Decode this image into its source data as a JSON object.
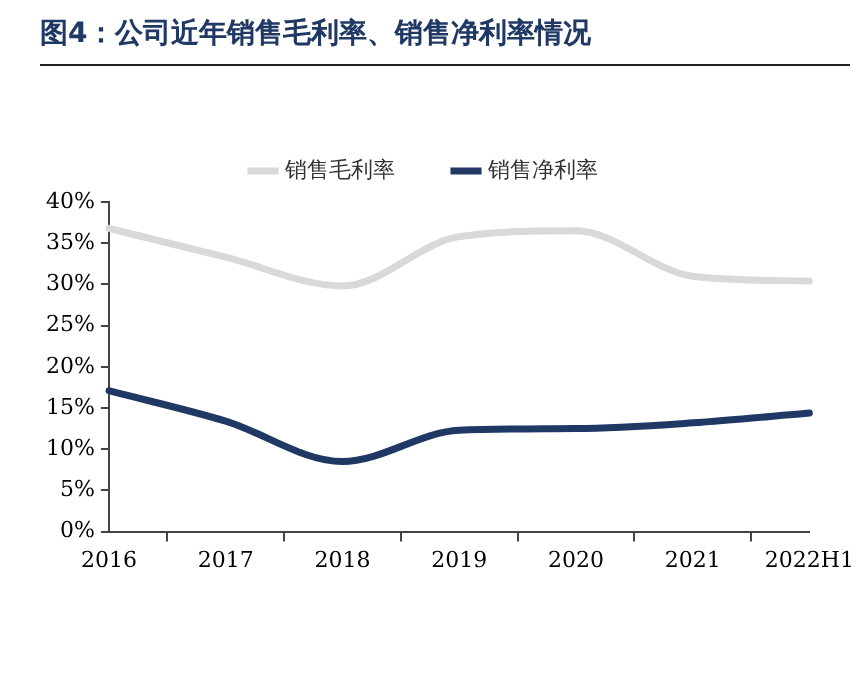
{
  "chart_data": {
    "type": "line",
    "title": "图4：公司近年销售毛利率、销售净利率情况",
    "categories": [
      "2016",
      "2017",
      "2018",
      "2019",
      "2020",
      "2021",
      "2022H1"
    ],
    "series": [
      {
        "name": "销售毛利率",
        "color": "#d9d9d9",
        "values": [
          36.8,
          33.3,
          29.8,
          35.8,
          36.5,
          31.0,
          30.4
        ]
      },
      {
        "name": "销售净利率",
        "color": "#1f3864",
        "values": [
          17.1,
          13.4,
          8.5,
          12.3,
          12.5,
          13.2,
          14.4
        ]
      }
    ],
    "ylim": [
      0,
      40
    ],
    "yticks": [
      {
        "value": 0,
        "label": "0%"
      },
      {
        "value": 5,
        "label": "5%"
      },
      {
        "value": 10,
        "label": "10%"
      },
      {
        "value": 15,
        "label": "15%"
      },
      {
        "value": 20,
        "label": "20%"
      },
      {
        "value": 25,
        "label": "25%"
      },
      {
        "value": 30,
        "label": "30%"
      },
      {
        "value": 35,
        "label": "35%"
      },
      {
        "value": 40,
        "label": "40%"
      }
    ],
    "grid": false,
    "legend": "top",
    "marker": "none",
    "line_style": "solid"
  }
}
